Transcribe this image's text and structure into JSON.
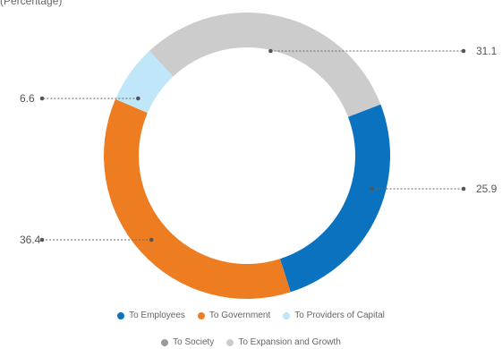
{
  "chart_data": {
    "type": "pie",
    "subtitle": "(Percentage)",
    "slices": [
      {
        "label": "To Employees",
        "value": 25.9,
        "color": "#0b72c0"
      },
      {
        "label": "To Government",
        "value": 36.4,
        "color": "#ee7d22"
      },
      {
        "label": "To Providers of Capital",
        "value": 6.6,
        "color": "#bfe6f9"
      },
      {
        "label": "To Society",
        "value": 0,
        "color": "#9b9b9b"
      },
      {
        "label": "To Expansion and Growth",
        "value": 31.1,
        "color": "#cccccc"
      }
    ],
    "value_labels": [
      "25.9",
      "36.4",
      "6.6",
      "31.1"
    ],
    "legend": {
      "row1": [
        "To Employees",
        "To Government",
        "To Providers of Capital"
      ],
      "row2": [
        "To Society",
        "To Expansion and Growth"
      ]
    },
    "legend_placement": "bottom-center"
  }
}
